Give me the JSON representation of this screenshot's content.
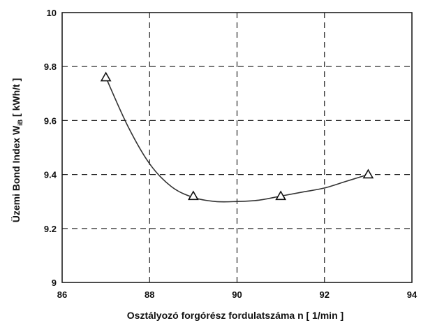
{
  "chart_data": {
    "type": "scatter",
    "title": "",
    "xlabel": "Osztályozó forgórész fordulatszáma  n  [ 1/min ]",
    "ylabel": {
      "prefix": "Üzemi Bond Index W",
      "subscript": "iB",
      "suffix": " [ kWh/t ]"
    },
    "xlim": [
      86,
      94
    ],
    "ylim": [
      9,
      10
    ],
    "x_ticks": [
      "86",
      "88",
      "90",
      "92",
      "94"
    ],
    "y_ticks": [
      "9",
      "9.2",
      "9.4",
      "9.6",
      "9.8",
      "10"
    ],
    "grid": true,
    "marker": "triangle",
    "points": {
      "x": [
        87,
        89,
        91,
        93
      ],
      "y": [
        9.76,
        9.32,
        9.32,
        9.4
      ]
    },
    "curve": {
      "type": "smooth-fit",
      "x": [
        87,
        87.5,
        88,
        88.5,
        89,
        89.5,
        90,
        90.5,
        91,
        91.5,
        92,
        92.5,
        93
      ],
      "y": [
        9.76,
        9.58,
        9.44,
        9.355,
        9.315,
        9.3,
        9.3,
        9.305,
        9.32,
        9.335,
        9.35,
        9.375,
        9.4
      ]
    },
    "colors": {
      "line": "#333333",
      "grid": "#222222",
      "marker_edge": "#111111"
    }
  }
}
